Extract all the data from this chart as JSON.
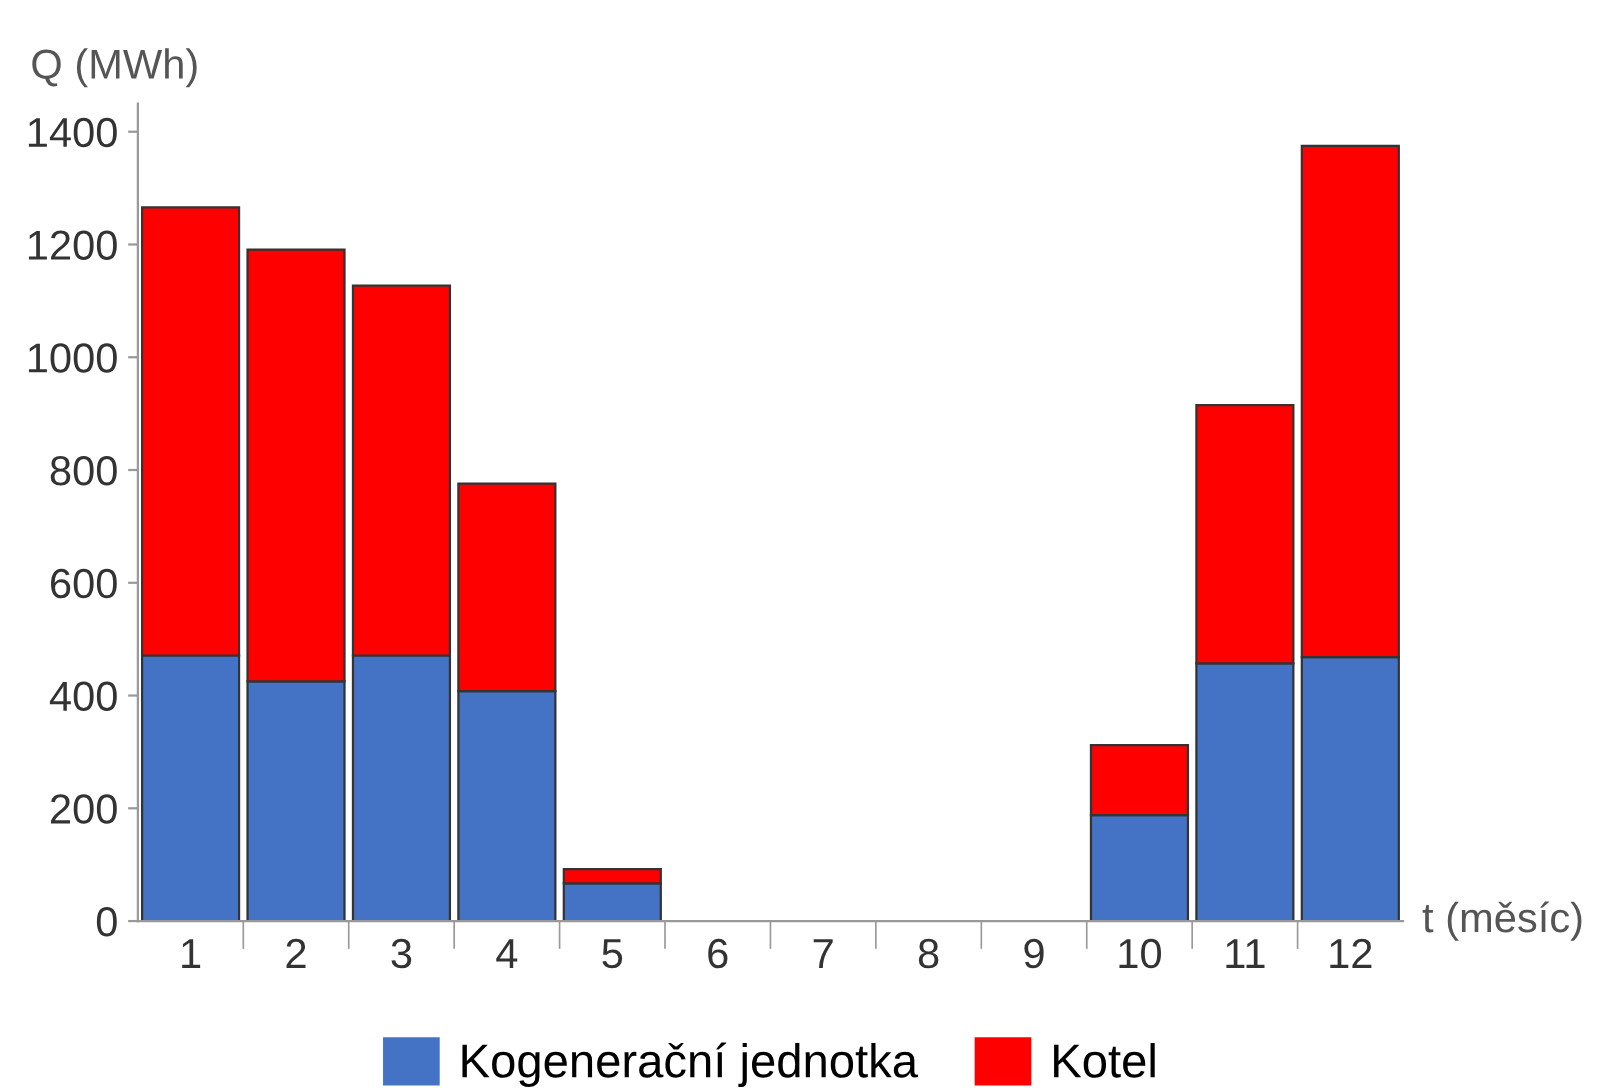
{
  "chart_data": {
    "type": "bar",
    "stacked": true,
    "xlabel": "t (měsíc)",
    "ylabel": "Q (MWh)",
    "categories": [
      "1",
      "2",
      "3",
      "4",
      "5",
      "6",
      "7",
      "8",
      "9",
      "10",
      "11",
      "12"
    ],
    "series": [
      {
        "name": "Kogenerační jednotka",
        "color": "#4472c4",
        "values": [
          471,
          425,
          471,
          408,
          67,
          null,
          null,
          null,
          null,
          188,
          457,
          468
        ]
      },
      {
        "name": "Kotel",
        "color": "#ff0000",
        "values": [
          795,
          766,
          656,
          368,
          25,
          null,
          null,
          null,
          null,
          124,
          458,
          907
        ]
      }
    ],
    "ylim": [
      0,
      1450
    ],
    "yticks": [
      0,
      200,
      400,
      600,
      800,
      1000,
      1200,
      1400
    ],
    "grid": false,
    "legend": "bottom"
  }
}
